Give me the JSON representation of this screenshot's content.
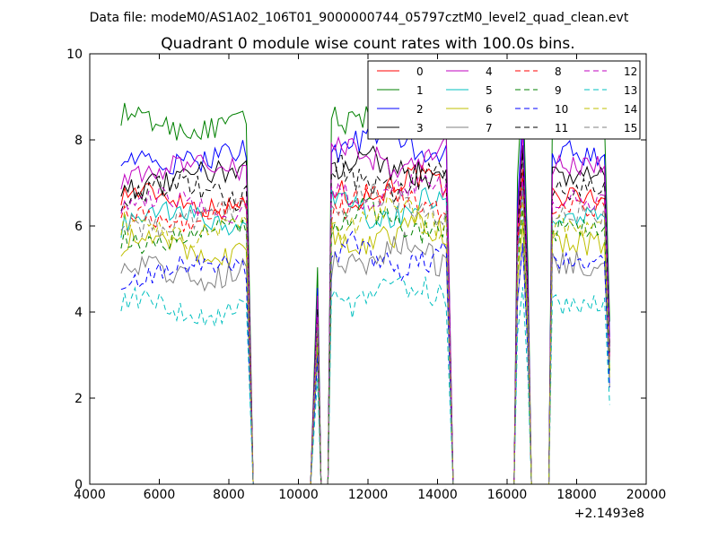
{
  "chart_data": {
    "type": "line",
    "suptitle": "Data file: modeM0/AS1A02_106T01_9000000744_05797cztM0_level2_quad_clean.evt",
    "title": "Quadrant 0 module wise count rates with 100.0s bins.",
    "xlabel": "",
    "ylabel": "",
    "xlim": [
      4000,
      20000
    ],
    "ylim": [
      0,
      10
    ],
    "x_offset_label": "+2.1493e8",
    "x_ticks": [
      "4000",
      "6000",
      "8000",
      "10000",
      "12000",
      "14000",
      "16000",
      "18000",
      "20000"
    ],
    "y_ticks": [
      "0",
      "2",
      "4",
      "6",
      "8",
      "10"
    ],
    "grid": false,
    "legend_position": "top-right",
    "legend_columns": 4,
    "segments": [
      {
        "start": 4900,
        "end": 8500,
        "drop_at": 8700
      },
      {
        "peak_at": 10550,
        "peak_scale": 0.6
      },
      {
        "start": 10950,
        "end": 14300,
        "drop_at": 14450
      },
      {
        "start": 16300,
        "end": 16600,
        "drop_at": 16700
      },
      {
        "start": 17300,
        "end": 18850,
        "drop_at": 18950
      }
    ],
    "series": [
      {
        "name": "0",
        "color": "#ff0000",
        "dashed": false,
        "level": 6.6
      },
      {
        "name": "1",
        "color": "#008000",
        "dashed": false,
        "level": 8.4
      },
      {
        "name": "2",
        "color": "#0000ff",
        "dashed": false,
        "level": 7.6
      },
      {
        "name": "3",
        "color": "#000000",
        "dashed": false,
        "level": 7.1
      },
      {
        "name": "4",
        "color": "#bf00bf",
        "dashed": false,
        "level": 7.3
      },
      {
        "name": "5",
        "color": "#00bfbf",
        "dashed": false,
        "level": 6.1
      },
      {
        "name": "6",
        "color": "#bfbf00",
        "dashed": false,
        "level": 5.5
      },
      {
        "name": "7",
        "color": "#808080",
        "dashed": false,
        "level": 5.0
      },
      {
        "name": "8",
        "color": "#ff0000",
        "dashed": true,
        "level": 6.3
      },
      {
        "name": "9",
        "color": "#008000",
        "dashed": true,
        "level": 5.8
      },
      {
        "name": "10",
        "color": "#0000ff",
        "dashed": true,
        "level": 5.0
      },
      {
        "name": "11",
        "color": "#000000",
        "dashed": true,
        "level": 6.8
      },
      {
        "name": "12",
        "color": "#bf00bf",
        "dashed": true,
        "level": 6.5
      },
      {
        "name": "13",
        "color": "#00bfbf",
        "dashed": true,
        "level": 4.1
      },
      {
        "name": "14",
        "color": "#bfbf00",
        "dashed": true,
        "level": 5.9
      },
      {
        "name": "15",
        "color": "#808080",
        "dashed": true,
        "level": 6.2
      }
    ]
  }
}
